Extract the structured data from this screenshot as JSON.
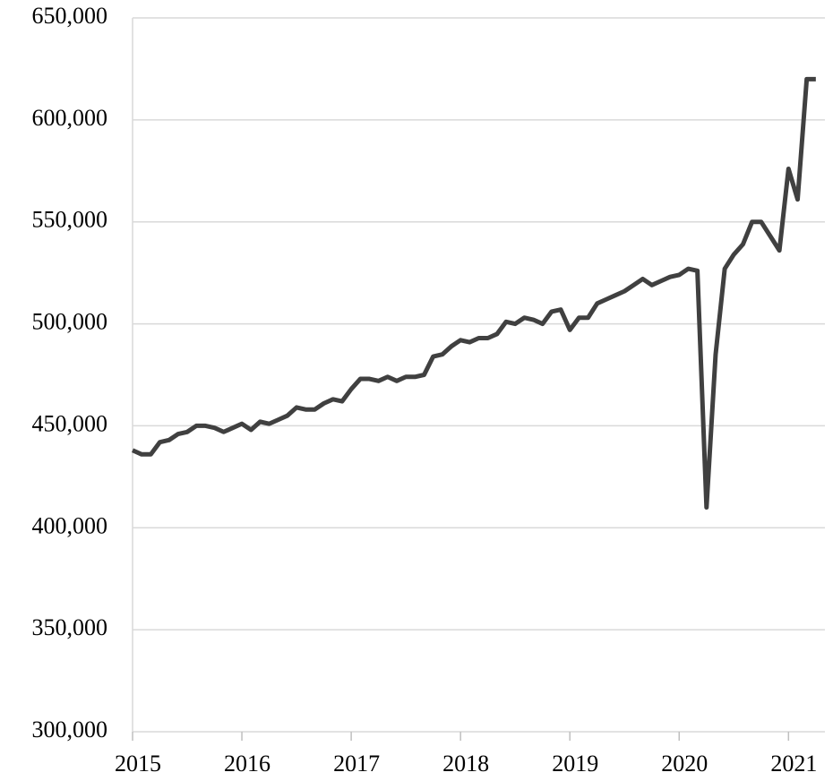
{
  "chart_data": {
    "type": "line",
    "x": [
      0,
      1,
      2,
      3,
      4,
      5,
      6,
      7,
      8,
      9,
      10,
      11,
      12,
      13,
      14,
      15,
      16,
      17,
      18,
      19,
      20,
      21,
      22,
      23,
      24,
      25,
      26,
      27,
      28,
      29,
      30,
      31,
      32,
      33,
      34,
      35,
      36,
      37,
      38,
      39,
      40,
      41,
      42,
      43,
      44,
      45,
      46,
      47,
      48,
      49,
      50,
      51,
      52,
      53,
      54,
      55,
      56,
      57,
      58,
      59,
      60,
      61,
      62,
      63,
      64,
      65,
      66,
      67,
      68,
      69,
      70,
      71,
      72,
      73,
      74,
      75
    ],
    "series": [
      {
        "color": "#404040",
        "values": [
          438000,
          436000,
          436000,
          442000,
          443000,
          446000,
          447000,
          450000,
          450000,
          449000,
          447000,
          449000,
          451000,
          448000,
          452000,
          451000,
          453000,
          455000,
          459000,
          458000,
          458000,
          461000,
          463000,
          462000,
          468000,
          473000,
          473000,
          472000,
          474000,
          472000,
          474000,
          474000,
          475000,
          484000,
          485000,
          489000,
          492000,
          491000,
          493000,
          493000,
          495000,
          501000,
          500000,
          503000,
          502000,
          500000,
          506000,
          507000,
          497000,
          503000,
          503000,
          510000,
          512000,
          514000,
          516000,
          519000,
          522000,
          519000,
          521000,
          523000,
          524000,
          527000,
          526000,
          410000,
          485000,
          527000,
          534000,
          539000,
          550000,
          550000,
          543000,
          536000,
          576000,
          561000,
          620000,
          620000
        ]
      }
    ],
    "xlim": [
      0,
      76
    ],
    "xticks": [
      {
        "value": 0,
        "label": "2015"
      },
      {
        "value": 12,
        "label": "2016"
      },
      {
        "value": 24,
        "label": "2017"
      },
      {
        "value": 36,
        "label": "2018"
      },
      {
        "value": 48,
        "label": "2019"
      },
      {
        "value": 60,
        "label": "2020"
      },
      {
        "value": 72,
        "label": "2021"
      }
    ],
    "ylim": [
      300000,
      650000
    ],
    "yticks": [
      {
        "value": 300000,
        "label": "300,000"
      },
      {
        "value": 350000,
        "label": "350,000"
      },
      {
        "value": 400000,
        "label": "400,000"
      },
      {
        "value": 450000,
        "label": "450,000"
      },
      {
        "value": 500000,
        "label": "500,000"
      },
      {
        "value": 550000,
        "label": "550,000"
      },
      {
        "value": 600000,
        "label": "600,000"
      },
      {
        "value": 650000,
        "label": "650,000"
      }
    ],
    "grid": true
  }
}
